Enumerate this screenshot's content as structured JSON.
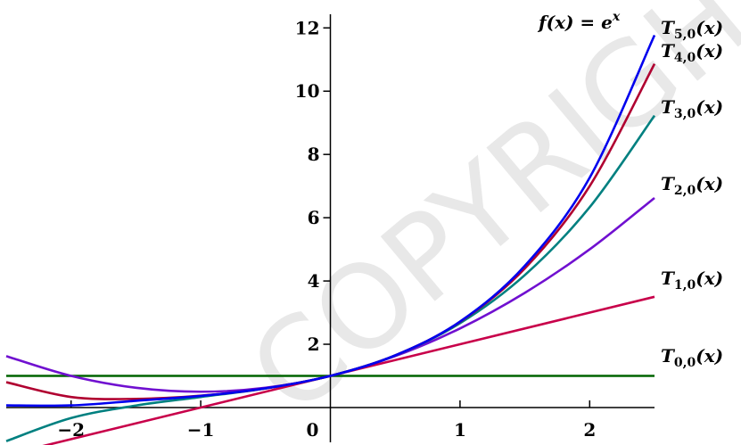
{
  "chart_data": {
    "type": "line",
    "title": "",
    "xlabel": "",
    "ylabel": "",
    "xlim": [
      -2.5,
      2.5
    ],
    "ylim": [
      -1.1,
      12.6
    ],
    "x_ticks": [
      -2,
      -1,
      0,
      1,
      2
    ],
    "y_ticks": [
      2,
      4,
      6,
      8,
      10,
      12
    ],
    "x_tick_labels": [
      "−2",
      "−1",
      "0",
      "1",
      "2"
    ],
    "y_tick_labels": [
      "2",
      "4",
      "6",
      "8",
      "10",
      "12"
    ],
    "grid": false,
    "function_label": "f(x) = e^x",
    "series": [
      {
        "name": "T_{5,0}(x)",
        "label_main": "T",
        "label_sub": "5,0",
        "label_tail": "(x)",
        "color": "#0000ee",
        "x": [
          -2.5,
          -2.0,
          -1.5,
          -1.0,
          -0.5,
          0,
          0.5,
          1.0,
          1.5,
          2.0,
          2.5
        ],
        "values": [
          0.0677,
          0.0667,
          0.2131,
          0.3667,
          0.6065,
          1,
          1.6487,
          2.7167,
          4.4814,
          7.2667,
          11.7682
        ]
      },
      {
        "name": "T_{4,0}(x)",
        "label_main": "T",
        "label_sub": "4,0",
        "label_tail": "(x)",
        "color": "#b00030",
        "x": [
          -2.5,
          -2.0,
          -1.5,
          -1.0,
          -0.5,
          0,
          0.5,
          1.0,
          1.5,
          2.0,
          2.5
        ],
        "values": [
          0.8008,
          0.3333,
          0.2734,
          0.375,
          0.6068,
          1,
          1.6484,
          2.7083,
          4.3984,
          7.0,
          10.8633
        ]
      },
      {
        "name": "T_{3,0}(x)",
        "label_main": "T",
        "label_sub": "3,0",
        "label_tail": "(x)",
        "color": "#008080",
        "x": [
          -2.5,
          -2.0,
          -1.5,
          -1.0,
          -0.5,
          0,
          0.5,
          1.0,
          1.5,
          2.0,
          2.5
        ],
        "values": [
          -1.0625,
          -0.3333,
          0.0625,
          0.3333,
          0.6042,
          1,
          1.6458,
          2.6667,
          4.1875,
          6.3333,
          9.2292
        ]
      },
      {
        "name": "T_{2,0}(x)",
        "label_main": "T",
        "label_sub": "2,0",
        "label_tail": "(x)",
        "color": "#7010d0",
        "x": [
          -2.5,
          -2.0,
          -1.5,
          -1.0,
          -0.5,
          0,
          0.5,
          1.0,
          1.5,
          2.0,
          2.5
        ],
        "values": [
          1.625,
          1.0,
          0.625,
          0.5,
          0.625,
          1,
          1.625,
          2.5,
          3.625,
          5.0,
          6.625
        ]
      },
      {
        "name": "T_{1,0}(x)",
        "label_main": "T",
        "label_sub": "1,0",
        "label_tail": "(x)",
        "color": "#c8004a",
        "x": [
          -2.5,
          2.5
        ],
        "values": [
          -1.5,
          3.5
        ]
      },
      {
        "name": "T_{0,0}(x)",
        "label_main": "T",
        "label_sub": "0,0",
        "label_tail": "(x)",
        "color": "#006400",
        "x": [
          -2.5,
          2.5
        ],
        "values": [
          1,
          1
        ]
      }
    ]
  }
}
